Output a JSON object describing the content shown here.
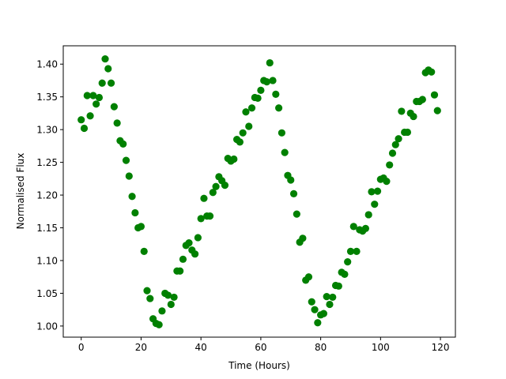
{
  "chart_data": {
    "type": "scatter",
    "title": "",
    "xlabel": "Time (Hours)",
    "ylabel": "Normalised Flux",
    "xlim": [
      -6,
      125
    ],
    "ylim": [
      0.983,
      1.428
    ],
    "xticks": [
      0,
      20,
      40,
      60,
      80,
      100,
      120
    ],
    "yticks": [
      1.0,
      1.05,
      1.1,
      1.15,
      1.2,
      1.25,
      1.3,
      1.35,
      1.4
    ],
    "ytick_labels": [
      "1.00",
      "1.05",
      "1.10",
      "1.15",
      "1.20",
      "1.25",
      "1.30",
      "1.35",
      "1.40"
    ],
    "grid": false,
    "colors": {
      "marker": "#008000"
    },
    "series": [
      {
        "x": [
          0,
          1,
          2,
          3,
          4,
          5,
          6,
          7,
          8,
          9,
          10,
          11,
          12,
          13,
          14,
          15,
          16,
          17,
          18,
          19,
          20,
          21,
          22,
          23,
          24,
          25,
          26,
          27,
          28,
          29,
          30,
          31,
          32,
          33,
          34,
          35,
          36,
          37,
          38,
          39,
          40,
          41,
          42,
          43,
          44,
          45,
          46,
          47,
          48,
          49,
          50,
          51,
          52,
          53,
          54,
          55,
          56,
          57,
          58,
          59,
          60,
          61,
          62,
          63,
          64,
          65,
          66,
          67,
          68,
          69,
          70,
          71,
          72,
          73,
          74,
          75,
          76,
          77,
          78,
          79,
          80,
          81,
          82,
          83,
          84,
          85,
          86,
          87,
          88,
          89,
          90,
          91,
          92,
          93,
          94,
          95,
          96,
          97,
          98,
          99,
          100,
          101,
          102,
          103,
          104,
          105,
          106,
          107,
          108,
          109,
          110,
          111,
          112,
          113,
          114,
          115,
          116,
          117,
          118,
          119
        ],
        "y": [
          1.315,
          1.302,
          1.352,
          1.321,
          1.352,
          1.339,
          1.349,
          1.371,
          1.408,
          1.393,
          1.371,
          1.335,
          1.31,
          1.283,
          1.278,
          1.253,
          1.229,
          1.198,
          1.173,
          1.15,
          1.152,
          1.114,
          1.054,
          1.042,
          1.011,
          1.004,
          1.002,
          1.023,
          1.05,
          1.047,
          1.033,
          1.044,
          1.084,
          1.084,
          1.102,
          1.123,
          1.127,
          1.116,
          1.11,
          1.135,
          1.164,
          1.195,
          1.168,
          1.168,
          1.204,
          1.213,
          1.228,
          1.222,
          1.215,
          1.256,
          1.252,
          1.255,
          1.285,
          1.281,
          1.295,
          1.327,
          1.305,
          1.333,
          1.349,
          1.348,
          1.36,
          1.375,
          1.373,
          1.402,
          1.375,
          1.354,
          1.333,
          1.295,
          1.265,
          1.23,
          1.223,
          1.202,
          1.171,
          1.128,
          1.134,
          1.07,
          1.075,
          1.037,
          1.025,
          1.005,
          1.017,
          1.019,
          1.045,
          1.033,
          1.044,
          1.062,
          1.061,
          1.082,
          1.079,
          1.098,
          1.114,
          1.152,
          1.114,
          1.147,
          1.145,
          1.149,
          1.17,
          1.205,
          1.186,
          1.206,
          1.224,
          1.226,
          1.221,
          1.246,
          1.264,
          1.277,
          1.286,
          1.328,
          1.296,
          1.296,
          1.325,
          1.32,
          1.343,
          1.343,
          1.346,
          1.387,
          1.391,
          1.388,
          1.353,
          1.329
        ]
      }
    ]
  }
}
